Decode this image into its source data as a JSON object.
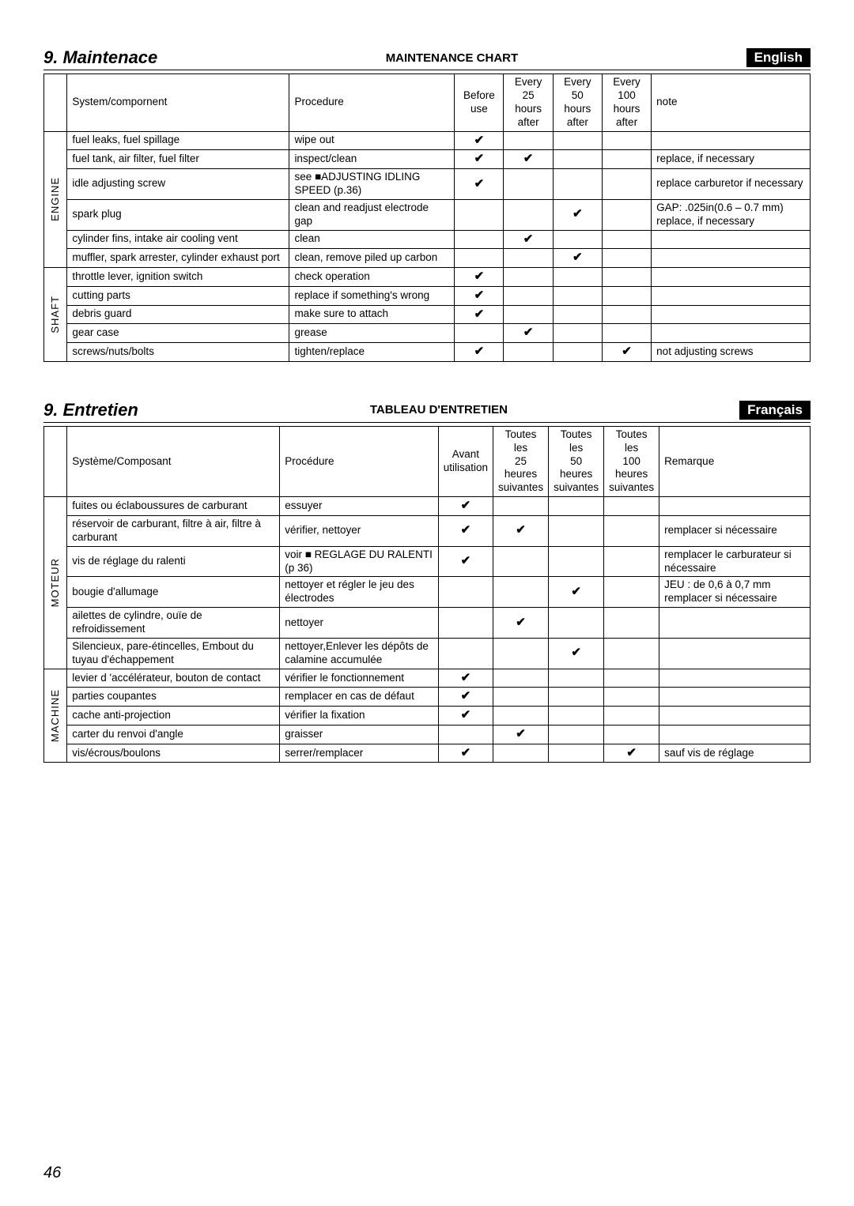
{
  "pageNumber": "46",
  "sections": [
    {
      "title": "9. Maintenace",
      "subtitle": "MAINTENANCE CHART",
      "lang": "English",
      "columns": {
        "system": "System/compornent",
        "procedure": "Procedure",
        "before": "Before use",
        "c25": "Every 25 hours after",
        "c50": "Every 50 hours after",
        "c100": "Every 100 hours after",
        "note": "note"
      },
      "groups": [
        {
          "label": "ENGINE",
          "rows": [
            {
              "sys": "fuel leaks, fuel spillage",
              "proc": "wipe out",
              "b": "✔",
              "c25": "",
              "c50": "",
              "c100": "",
              "note": ""
            },
            {
              "sys": "fuel tank, air filter, fuel filter",
              "proc": "inspect/clean",
              "b": "✔",
              "c25": "✔",
              "c50": "",
              "c100": "",
              "note": "replace, if necessary"
            },
            {
              "sys": "idle adjusting screw",
              "proc": "see ■ADJUSTING IDLING SPEED (p.36)",
              "b": "✔",
              "c25": "",
              "c50": "",
              "c100": "",
              "note": "replace carburetor if necessary"
            },
            {
              "sys": "spark plug",
              "proc": "clean and readjust electrode gap",
              "b": "",
              "c25": "",
              "c50": "✔",
              "c100": "",
              "note": "GAP: .025in(0.6 – 0.7 mm) replace, if necessary"
            },
            {
              "sys": "cylinder fins, intake air cooling vent",
              "proc": "clean",
              "b": "",
              "c25": "✔",
              "c50": "",
              "c100": "",
              "note": ""
            },
            {
              "sys": "muffler, spark arrester, cylinder exhaust port",
              "proc": "clean, remove piled up carbon",
              "b": "",
              "c25": "",
              "c50": "✔",
              "c100": "",
              "note": ""
            }
          ]
        },
        {
          "label": "SHAFT",
          "rows": [
            {
              "sys": "throttle lever, ignition switch",
              "proc": "check operation",
              "b": "✔",
              "c25": "",
              "c50": "",
              "c100": "",
              "note": ""
            },
            {
              "sys": "cutting parts",
              "proc": "replace if something's wrong",
              "b": "✔",
              "c25": "",
              "c50": "",
              "c100": "",
              "note": ""
            },
            {
              "sys": "debris guard",
              "proc": "make sure to attach",
              "b": "✔",
              "c25": "",
              "c50": "",
              "c100": "",
              "note": ""
            },
            {
              "sys": "gear case",
              "proc": "grease",
              "b": "",
              "c25": "✔",
              "c50": "",
              "c100": "",
              "note": ""
            },
            {
              "sys": "screws/nuts/bolts",
              "proc": "tighten/replace",
              "b": "✔",
              "c25": "",
              "c50": "",
              "c100": "✔",
              "note": "not adjusting screws"
            }
          ]
        }
      ]
    },
    {
      "title": "9. Entretien",
      "subtitle": "TABLEAU D'ENTRETIEN",
      "lang": "Français",
      "columns": {
        "system": "Système/Composant",
        "procedure": "Procédure",
        "before": "Avant utilisation",
        "c25": "Toutes les 25 heures suivantes",
        "c50": "Toutes les 50 heures suivantes",
        "c100": "Toutes les 100 heures suivantes",
        "note": "Remarque"
      },
      "groups": [
        {
          "label": "MOTEUR",
          "rows": [
            {
              "sys": "fuites ou éclaboussures de carburant",
              "proc": "essuyer",
              "b": "✔",
              "c25": "",
              "c50": "",
              "c100": "",
              "note": ""
            },
            {
              "sys": "réservoir de carburant, filtre à air, filtre à carburant",
              "proc": "vérifier, nettoyer",
              "b": "✔",
              "c25": "✔",
              "c50": "",
              "c100": "",
              "note": "remplacer si nécessaire"
            },
            {
              "sys": "vis de réglage du ralenti",
              "proc": "voir ■ REGLAGE DU RALENTI (p 36)",
              "b": "✔",
              "c25": "",
              "c50": "",
              "c100": "",
              "note": "remplacer le carburateur si nécessaire"
            },
            {
              "sys": "bougie d'allumage",
              "proc": "nettoyer et régler le jeu des électrodes",
              "b": "",
              "c25": "",
              "c50": "✔",
              "c100": "",
              "note": "JEU : de 0,6 à 0,7 mm remplacer si nécessaire"
            },
            {
              "sys": "ailettes de cylindre, ouïe de refroidissement",
              "proc": "nettoyer",
              "b": "",
              "c25": "✔",
              "c50": "",
              "c100": "",
              "note": ""
            },
            {
              "sys": "Silencieux, pare-étincelles, Embout du tuyau d'échappement",
              "proc": "nettoyer,Enlever les dépôts de calamine accumulée",
              "b": "",
              "c25": "",
              "c50": "✔",
              "c100": "",
              "note": ""
            }
          ]
        },
        {
          "label": "MACHINE",
          "rows": [
            {
              "sys": "levier d 'accélérateur, bouton de contact",
              "proc": "vérifier le fonctionnement",
              "b": "✔",
              "c25": "",
              "c50": "",
              "c100": "",
              "note": ""
            },
            {
              "sys": "parties coupantes",
              "proc": "remplacer en cas de défaut",
              "b": "✔",
              "c25": "",
              "c50": "",
              "c100": "",
              "note": ""
            },
            {
              "sys": "cache anti-projection",
              "proc": "vérifier la fixation",
              "b": "✔",
              "c25": "",
              "c50": "",
              "c100": "",
              "note": ""
            },
            {
              "sys": "carter du renvoi d'angle",
              "proc": "graisser",
              "b": "",
              "c25": "✔",
              "c50": "",
              "c100": "",
              "note": ""
            },
            {
              "sys": "vis/écrous/boulons",
              "proc": "serrer/remplacer",
              "b": "✔",
              "c25": "",
              "c50": "",
              "c100": "✔",
              "note": "sauf vis de réglage"
            }
          ]
        }
      ]
    }
  ]
}
